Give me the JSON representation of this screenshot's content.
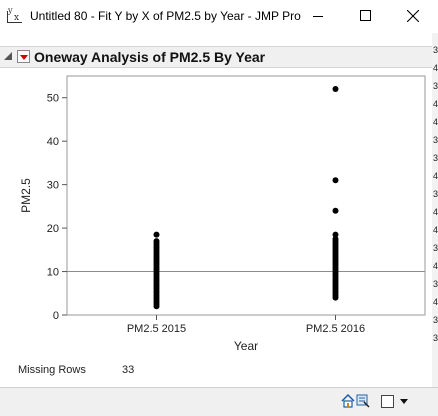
{
  "window": {
    "title": "Untitled 80 - Fit Y by X of PM2.5 by Year - JMP Pro",
    "app_icon": "jmp-fit-y-by-x-icon"
  },
  "report": {
    "outline_title": "Oneway Analysis of PM2.5 By Year",
    "missing_rows_label": "Missing Rows",
    "missing_rows_value": "33"
  },
  "right_strip_fragments": [
    "3",
    "4",
    "3",
    "4",
    "4",
    "3",
    "3",
    "4",
    "3",
    "4",
    "4",
    "3",
    "4",
    "3",
    "4",
    "3",
    "3"
  ],
  "chart_data": {
    "type": "scatter",
    "xlabel": "Year",
    "ylabel": "PM2.5",
    "categories": [
      "PM2.5 2015",
      "PM2.5 2016"
    ],
    "ylim": [
      0,
      55
    ],
    "yticks": [
      0,
      10,
      20,
      30,
      40,
      50
    ],
    "reference_line": 10,
    "grid": false,
    "series": [
      {
        "category": "PM2.5 2015",
        "values": [
          2,
          2.5,
          3,
          3.5,
          4,
          4.5,
          5,
          5.5,
          6,
          6.5,
          7,
          7.5,
          8,
          8.5,
          9,
          9.5,
          10,
          10.5,
          11,
          11.5,
          12,
          12.5,
          13,
          13.5,
          14,
          14.5,
          15,
          15.5,
          16,
          16.5,
          17,
          18.5
        ]
      },
      {
        "category": "PM2.5 2016",
        "values": [
          4,
          4.5,
          5,
          5.5,
          6,
          6.5,
          7,
          7.5,
          8,
          8.5,
          9,
          9.5,
          10,
          10.5,
          11,
          11.5,
          12,
          12.5,
          13,
          13.5,
          14,
          14.5,
          15,
          15.5,
          16,
          16.5,
          17,
          17.5,
          18.5,
          24,
          31,
          52
        ]
      }
    ],
    "colors": {
      "points": "#000000",
      "reference_line": "#8c8c8c",
      "frame": "#9a9a9a"
    }
  },
  "statusbar": {
    "tools": [
      "home-icon",
      "selection-icon",
      "window-box-icon",
      "dropdown-arrow-icon"
    ]
  }
}
